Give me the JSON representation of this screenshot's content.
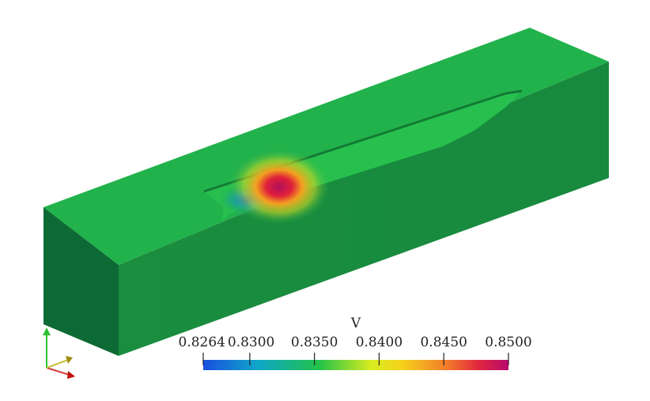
{
  "colorbar": {
    "title": "V",
    "ticks": [
      {
        "value": 0.8264,
        "label": "0.8264"
      },
      {
        "value": 0.83,
        "label": "0.8300"
      },
      {
        "value": 0.835,
        "label": "0.8350"
      },
      {
        "value": 0.84,
        "label": "0.8400"
      },
      {
        "value": 0.845,
        "label": "0.8450"
      },
      {
        "value": 0.85,
        "label": "0.8500"
      }
    ]
  }
}
